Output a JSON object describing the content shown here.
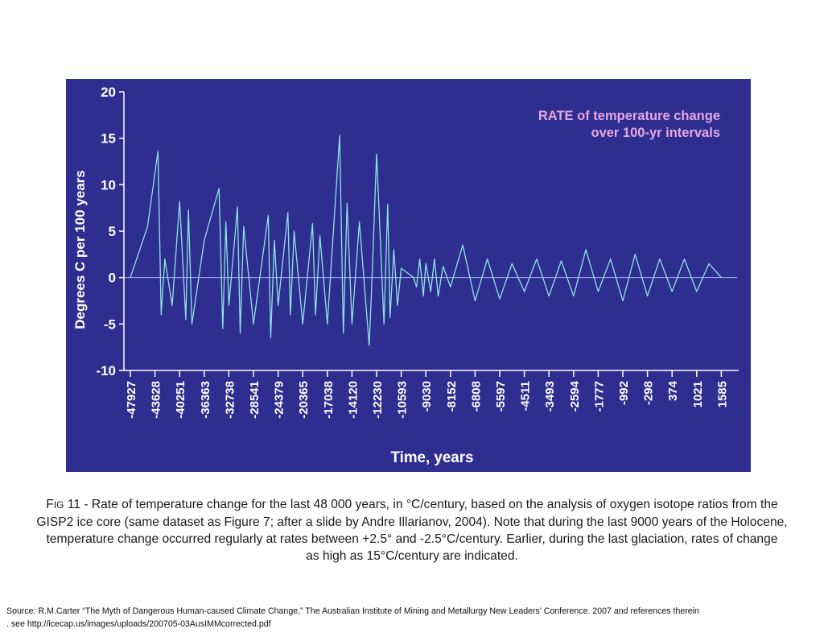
{
  "chart_data": {
    "type": "line",
    "ylabel": "Degrees C per 100 years",
    "xlabel": "Time, years",
    "annotation": [
      "RATE of temperature change",
      "over 100-yr intervals"
    ],
    "ylim": [
      -10,
      20
    ],
    "yticks": [
      20,
      15,
      10,
      5,
      0,
      -5,
      -10
    ],
    "x_tick_labels": [
      "-47927",
      "-43628",
      "-40251",
      "-36363",
      "-32738",
      "-28541",
      "-24379",
      "-20365",
      "-17038",
      "-14120",
      "-12230",
      "-10593",
      "-9030",
      "-8152",
      "-6808",
      "-5597",
      "-4511",
      "-3493",
      "-2594",
      "-1777",
      "-992",
      "-298",
      "374",
      "1021",
      "1585"
    ],
    "series": [
      {
        "color": "#8fe3e0",
        "x_index": [
          0,
          0.7,
          1.12,
          1.25,
          1.4,
          1.7,
          2,
          2.25,
          2.36,
          2.5,
          3,
          3.6,
          3.75,
          3.88,
          4,
          4.35,
          4.46,
          4.6,
          5,
          5.6,
          5.7,
          5.85,
          6,
          6.4,
          6.5,
          6.65,
          7,
          7.4,
          7.52,
          7.7,
          8,
          8.5,
          8.65,
          8.8,
          9,
          9.3,
          9.7,
          9.8,
          10,
          10.3,
          10.45,
          10.55,
          10.7,
          10.85,
          11,
          11.5,
          11.62,
          11.75,
          11.9,
          12,
          12.2,
          12.35,
          12.5,
          12.7,
          13,
          13.5,
          14,
          14.5,
          15,
          15.5,
          16,
          16.5,
          17,
          17.5,
          18,
          18.5,
          19,
          19.5,
          20,
          20.5,
          21,
          21.5,
          22,
          22.5,
          23,
          23.5,
          24
        ],
        "values": [
          0,
          5.5,
          13.6,
          -4,
          2,
          -3,
          8.2,
          -4.5,
          7.3,
          -5,
          4,
          9.6,
          -5.5,
          6,
          -3,
          7.6,
          -6,
          5.5,
          -5,
          6.7,
          -6.5,
          4,
          -3,
          7,
          -4,
          5,
          -5,
          5.8,
          -4,
          4.5,
          -5,
          15.3,
          -6,
          8,
          -5,
          6,
          -7.3,
          -1,
          13.3,
          -5,
          7.9,
          -4.3,
          3,
          -3,
          1,
          0,
          -1,
          2,
          -2,
          1.5,
          -1.5,
          2,
          -2,
          1.2,
          -1,
          3.5,
          -2.5,
          2,
          -2.3,
          1.5,
          -1.5,
          2,
          -2,
          1.8,
          -2,
          3,
          -1.5,
          2,
          -2.5,
          2.5,
          -2,
          2,
          -1.5,
          2,
          -1.5,
          1.5,
          0
        ]
      }
    ]
  },
  "caption": {
    "fig_f": "F",
    "fig_ig": "IG",
    "lines": [
      " 11 - Rate of temperature change for the last 48 000 years, in °C/century, based on the analysis of oxygen isotope ratios from the",
      "GISP2 ice core (same dataset as Figure 7; after a slide by Andre Illarianov, 2004). Note that during the last 9000 years of the Holocene,",
      "temperature change occurred regularly at rates between +2.5° and -2.5°C/century. Earlier, during the last glaciation, rates of change",
      "as high as 15°C/century are indicated."
    ]
  },
  "source": {
    "line1": "Source: R.M.Carter “The Myth of Dangerous Human-caused Climate Change,” The Australian Institute of Mining and Metallurgy New Leaders’ Conference. 2007 and references therein",
    "line2": ". see http://icecap.us/images/uploads/200705-03AusIMMcorrected.pdf"
  }
}
